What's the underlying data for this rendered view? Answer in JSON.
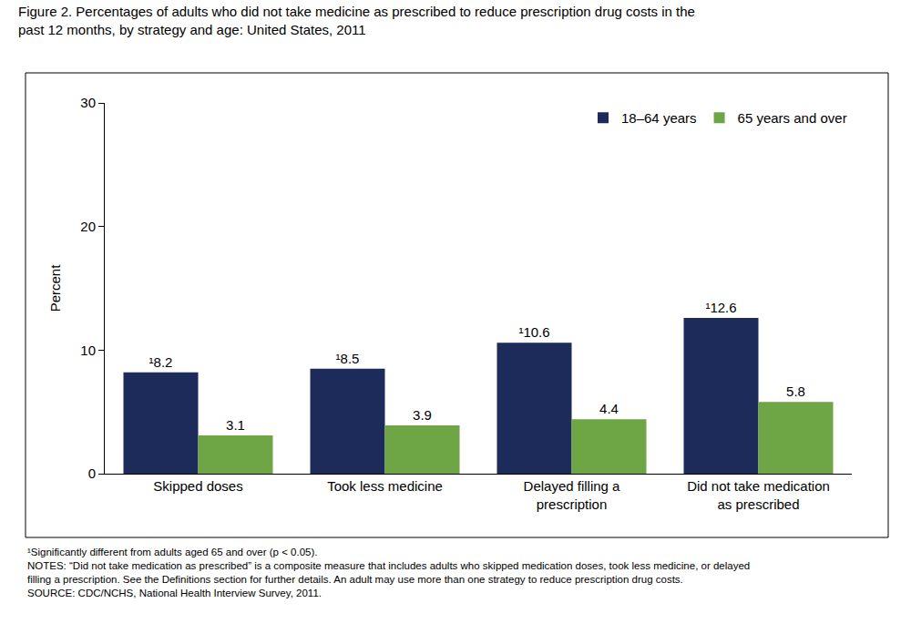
{
  "chart_data": {
    "type": "bar",
    "title": "Figure 2. Percentages of adults who did not take medicine as prescribed to reduce prescription drug costs in the past 12 months, by strategy and age: United States, 2011",
    "y_label": "Percent",
    "categories": [
      "Skipped doses",
      "Took less medicine",
      "Delayed filling a prescription",
      "Did not take medication as prescribed"
    ],
    "series": [
      {
        "name": "18–64 years",
        "color": "#1c2b5a",
        "values": [
          8.2,
          8.5,
          10.6,
          12.6
        ],
        "value_labels": [
          "¹8.2",
          "¹8.5",
          "¹10.6",
          "¹12.6"
        ]
      },
      {
        "name": "65 years and over",
        "color": "#6ea646",
        "values": [
          3.1,
          3.9,
          4.4,
          5.8
        ]
      }
    ],
    "ylim": [
      0,
      30
    ],
    "yticks": [
      0,
      10,
      20,
      30
    ],
    "grid": false,
    "legend": "top right",
    "data_labels": true,
    "notes": [
      "¹Significantly different from adults aged 65 and over (p < 0.05).",
      "NOTES: “Did not take medication as prescribed” is a composite measure that includes adults who skipped medication doses, took less medicine, or delayed filling a prescription. See the Definitions section for further details. An adult may use more than one strategy to reduce prescription drug costs.",
      "SOURCE: CDC/NCHS, National Health Interview Survey, 2011."
    ]
  }
}
